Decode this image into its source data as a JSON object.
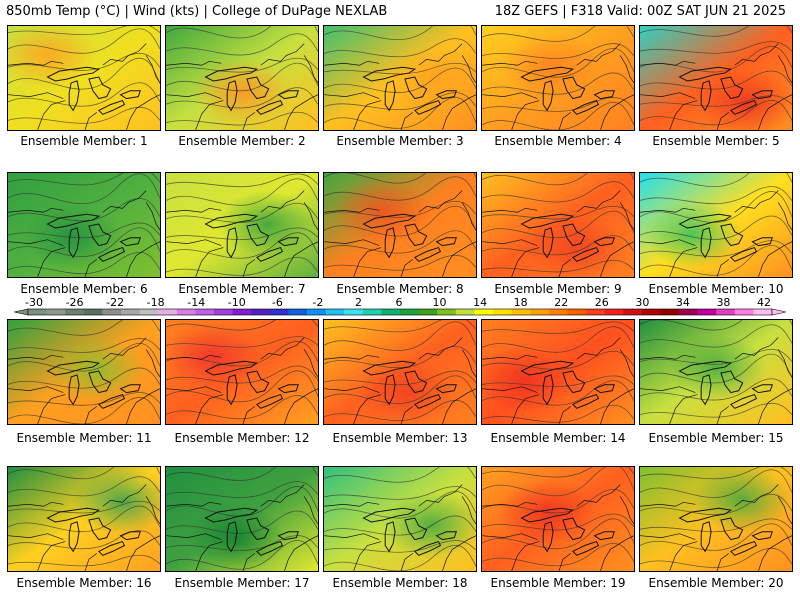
{
  "header": {
    "left": "850mb Temp (°C) | Wind (kts) | College of DuPage NEXLAB",
    "right": "18Z GEFS | F318 Valid: 00Z SAT JUN 21 2025"
  },
  "colorbar": {
    "ticks": [
      "-30",
      "-26",
      "-22",
      "-18",
      "-14",
      "-10",
      "-6",
      "-2",
      "2",
      "6",
      "10",
      "14",
      "18",
      "22",
      "26",
      "30",
      "34",
      "38",
      "42"
    ],
    "colors": [
      "#7f8f7f",
      "#8e9a8e",
      "#6f7f6f",
      "#5f6f5f",
      "#8f8f8f",
      "#a8a8a8",
      "#c0c0c0",
      "#e6b0e6",
      "#d680e6",
      "#c060e6",
      "#a040e0",
      "#8020d0",
      "#5020c0",
      "#3030d0",
      "#1060e0",
      "#1090f0",
      "#20c0f0",
      "#40e0f0",
      "#20d0b0",
      "#10b070",
      "#20a040",
      "#40a020",
      "#80c020",
      "#c0e040",
      "#ffff00",
      "#ffe000",
      "#ffc000",
      "#ffa000",
      "#ff8000",
      "#ff6000",
      "#ff4020",
      "#f02020",
      "#d01010",
      "#b00000",
      "#900000",
      "#a00050",
      "#c000a0",
      "#e040c0",
      "#ff80e0",
      "#ffc0f0"
    ]
  },
  "members": [
    {
      "label": "Ensemble Member: 1",
      "colors": [
        "#c8e040",
        "#f0e020",
        "#ffc020"
      ],
      "accent": "#ffa020"
    },
    {
      "label": "Ensemble Member: 2",
      "colors": [
        "#40a840",
        "#c8e040",
        "#ffc020"
      ],
      "accent": "#ff9020"
    },
    {
      "label": "Ensemble Member: 3",
      "colors": [
        "#40c070",
        "#ffc020",
        "#ff9020"
      ],
      "accent": "#ffa020"
    },
    {
      "label": "Ensemble Member: 4",
      "colors": [
        "#ffd020",
        "#ffa020",
        "#ff8020"
      ],
      "accent": "#ff8020"
    },
    {
      "label": "Ensemble Member: 5",
      "colors": [
        "#30d0c0",
        "#ff6020",
        "#ff9020"
      ],
      "accent": "#ee3020"
    },
    {
      "label": "Ensemble Member: 6",
      "colors": [
        "#30a040",
        "#50b040",
        "#80c030"
      ],
      "accent": "#209040"
    },
    {
      "label": "Ensemble Member: 7",
      "colors": [
        "#c8e040",
        "#e0e830",
        "#60b040"
      ],
      "accent": "#30a040"
    },
    {
      "label": "Ensemble Member: 8",
      "colors": [
        "#40a840",
        "#ff8020",
        "#ff9020"
      ],
      "accent": "#f05020"
    },
    {
      "label": "Ensemble Member: 9",
      "colors": [
        "#ffc020",
        "#ff6020",
        "#ff8020"
      ],
      "accent": "#f04020"
    },
    {
      "label": "Ensemble Member: 10",
      "colors": [
        "#20e0f0",
        "#ffe020",
        "#ff9020"
      ],
      "accent": "#30c060"
    },
    {
      "label": "Ensemble Member: 11",
      "colors": [
        "#30a040",
        "#ffa020",
        "#ff9020"
      ],
      "accent": "#80c030"
    },
    {
      "label": "Ensemble Member: 12",
      "colors": [
        "#ff8020",
        "#ff6020",
        "#ffa020"
      ],
      "accent": "#f03030"
    },
    {
      "label": "Ensemble Member: 13",
      "colors": [
        "#ffc020",
        "#ff6020",
        "#ff8020"
      ],
      "accent": "#f04020"
    },
    {
      "label": "Ensemble Member: 14",
      "colors": [
        "#ff8020",
        "#ff5020",
        "#ff9020"
      ],
      "accent": "#f03020"
    },
    {
      "label": "Ensemble Member: 15",
      "colors": [
        "#209040",
        "#c8e040",
        "#ffc020"
      ],
      "accent": "#40a840"
    },
    {
      "label": "Ensemble Member: 16",
      "colors": [
        "#209040",
        "#ffd020",
        "#ffa020"
      ],
      "accent": "#30a050"
    },
    {
      "label": "Ensemble Member: 17",
      "colors": [
        "#209040",
        "#40a040",
        "#e0e830"
      ],
      "accent": "#108030"
    },
    {
      "label": "Ensemble Member: 18",
      "colors": [
        "#30c080",
        "#c8e040",
        "#ffc020"
      ],
      "accent": "#40a840"
    },
    {
      "label": "Ensemble Member: 19",
      "colors": [
        "#ffa020",
        "#ff6020",
        "#ff9020"
      ],
      "accent": "#f03020"
    },
    {
      "label": "Ensemble Member: 20",
      "colors": [
        "#80c030",
        "#ffc020",
        "#ff9020"
      ],
      "accent": "#40a840"
    }
  ]
}
